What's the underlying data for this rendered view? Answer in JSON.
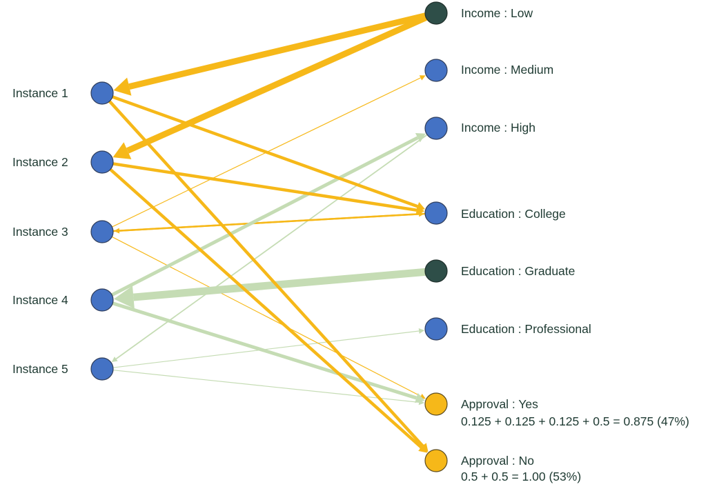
{
  "instances": [
    {
      "id": "i1",
      "label": "Instance 1"
    },
    {
      "id": "i2",
      "label": "Instance 2"
    },
    {
      "id": "i3",
      "label": "Instance 3"
    },
    {
      "id": "i4",
      "label": "Instance 4"
    },
    {
      "id": "i5",
      "label": "Instance 5"
    }
  ],
  "attributes": [
    {
      "id": "income_low",
      "label": "Income : Low",
      "color": "#2e4e48"
    },
    {
      "id": "income_medium",
      "label": "Income : Medium",
      "color": "#4472c4"
    },
    {
      "id": "income_high",
      "label": "Income : High",
      "color": "#4472c4"
    },
    {
      "id": "edu_college",
      "label": "Education : College",
      "color": "#4472c4"
    },
    {
      "id": "edu_graduate",
      "label": "Education : Graduate",
      "color": "#2e4e48"
    },
    {
      "id": "edu_professional",
      "label": "Education : Professional",
      "color": "#4472c4"
    },
    {
      "id": "approval_yes",
      "label": "Approval : Yes",
      "color": "#f6b819",
      "formula": "0.125 + 0.125 + 0.125 + 0.5 = 0.875  (47%)"
    },
    {
      "id": "approval_no",
      "label": "Approval : No",
      "color": "#f6b819",
      "formula": "0.5 + 0.5 = 1.00  (53%)"
    }
  ],
  "colors": {
    "orange_edge": "#f6b819",
    "green_edge": "#c5dcb4",
    "instance_node": "#4472c4",
    "dark_node": "#2e4e48",
    "outcome_node": "#f6b819",
    "text": "#1e3a32"
  }
}
